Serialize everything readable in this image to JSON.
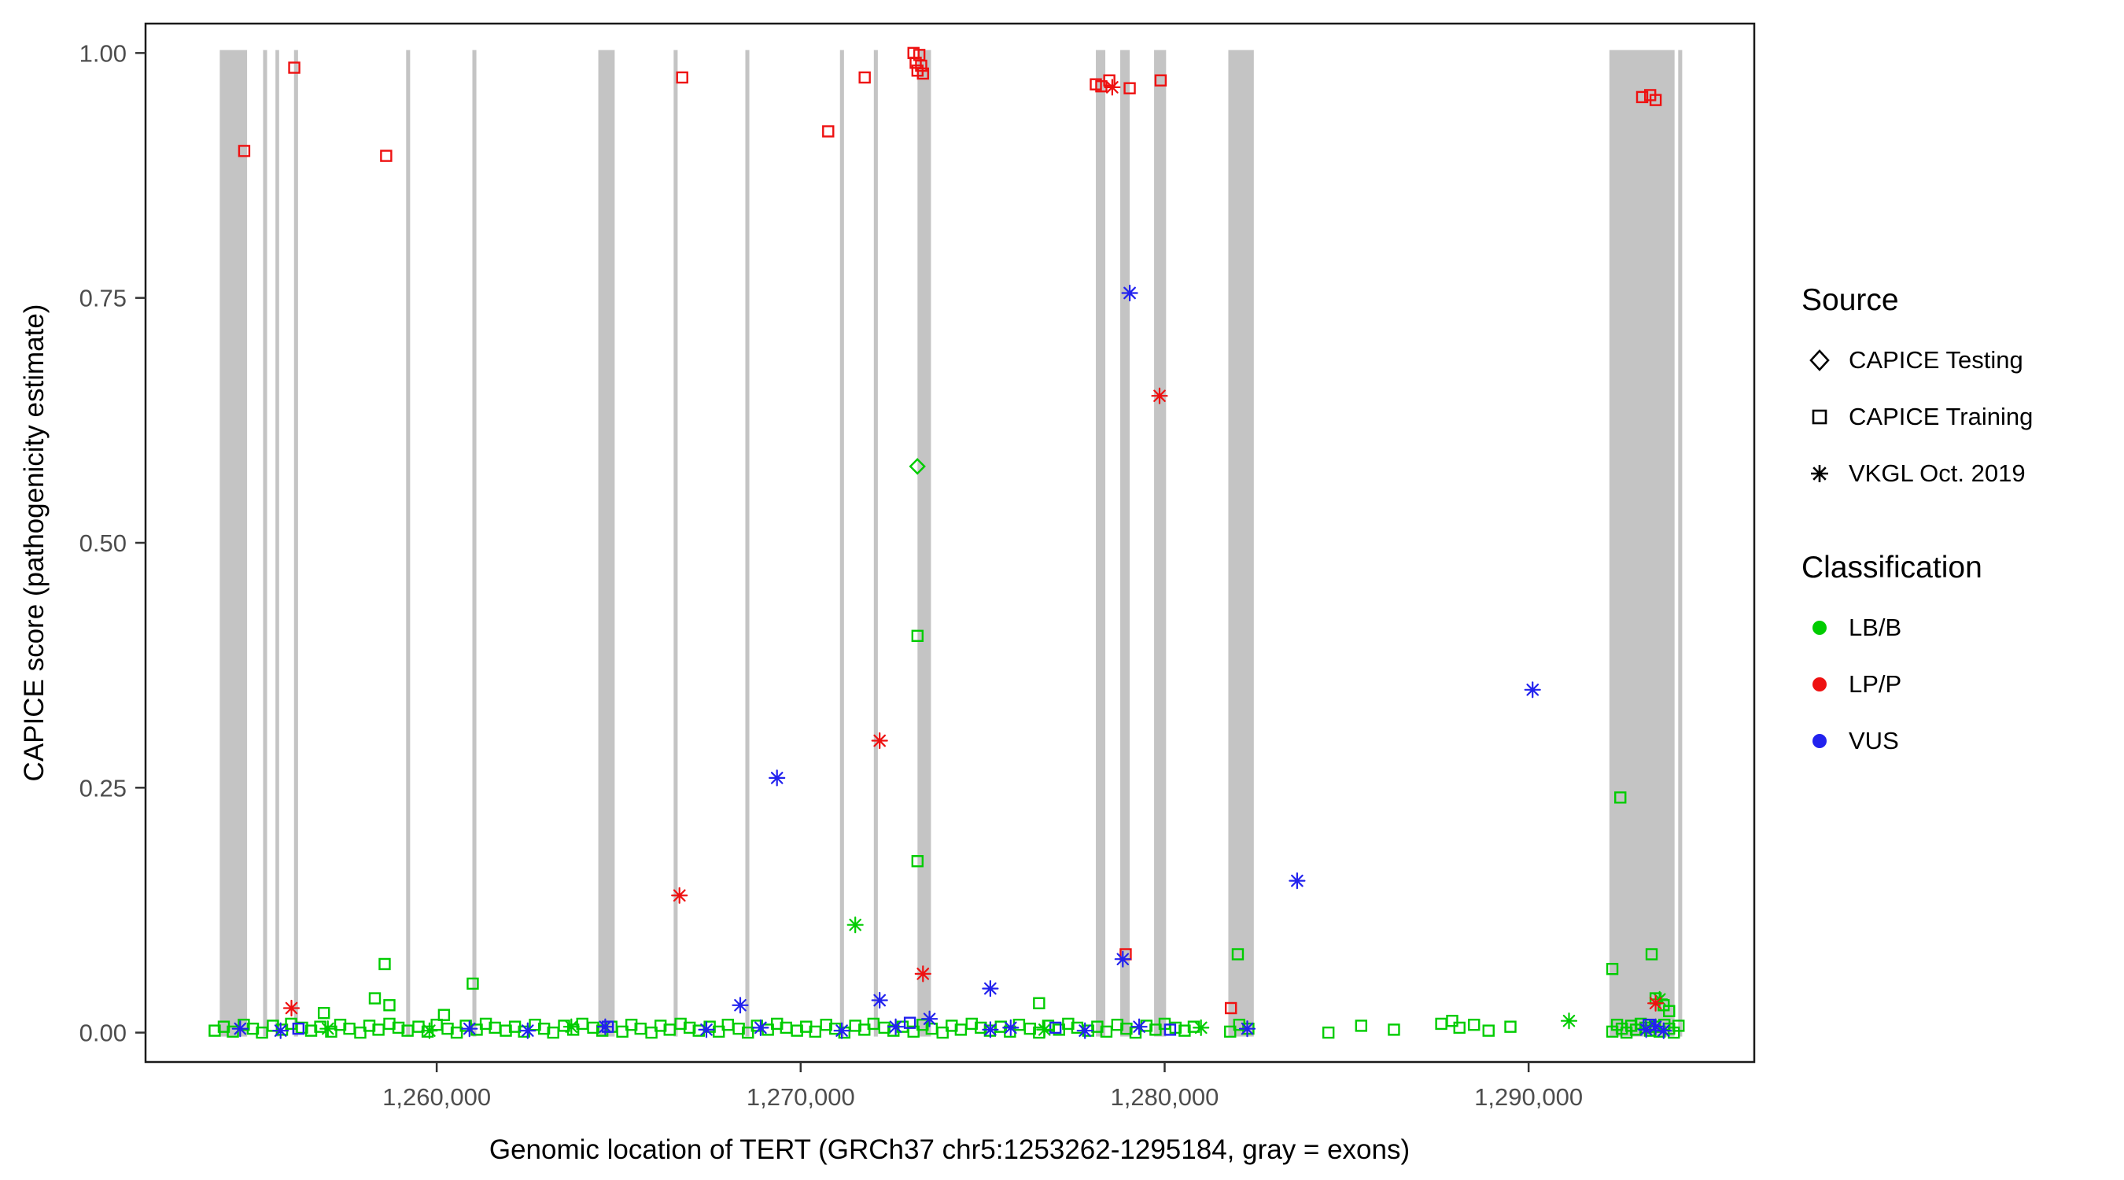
{
  "chart_data": {
    "type": "scatter",
    "title": "",
    "xlabel": "Genomic location of TERT (GRCh37 chr5:1253262-1295184, gray = exons)",
    "ylabel": "CAPICE score (pathogenicity estimate)",
    "xlim": [
      1252000,
      1296200
    ],
    "ylim": [
      -0.03,
      1.03
    ],
    "grid": false,
    "x_ticks": [
      {
        "v": 1260000,
        "label": "1,260,000"
      },
      {
        "v": 1270000,
        "label": "1,270,000"
      },
      {
        "v": 1280000,
        "label": "1,280,000"
      },
      {
        "v": 1290000,
        "label": "1,290,000"
      }
    ],
    "y_ticks": [
      {
        "v": 0.0,
        "label": "0.00"
      },
      {
        "v": 0.25,
        "label": "0.25"
      },
      {
        "v": 0.5,
        "label": "0.50"
      },
      {
        "v": 0.75,
        "label": "0.75"
      },
      {
        "v": 1.0,
        "label": "1.00"
      }
    ],
    "exon_color": "#c4c4c4",
    "exons": [
      [
        1254040,
        1254790
      ],
      [
        1255230,
        1255340
      ],
      [
        1255570,
        1255670
      ],
      [
        1256080,
        1256190
      ],
      [
        1259160,
        1259270
      ],
      [
        1260980,
        1261090
      ],
      [
        1264440,
        1264890
      ],
      [
        1266510,
        1266620
      ],
      [
        1268480,
        1268590
      ],
      [
        1271080,
        1271190
      ],
      [
        1272010,
        1272120
      ],
      [
        1273210,
        1273580
      ],
      [
        1278110,
        1278370
      ],
      [
        1278780,
        1279040
      ],
      [
        1279710,
        1280040
      ],
      [
        1281750,
        1282450
      ],
      [
        1292220,
        1294010
      ],
      [
        1294110,
        1294220
      ]
    ],
    "colors": {
      "LB/B": "#00cc00",
      "LP/P": "#ee1111",
      "VUS": "#2222ee"
    },
    "markers": {
      "CAPICE Testing": "diamond",
      "CAPICE Training": "square",
      "VKGL Oct. 2019": "asterisk"
    },
    "series": [
      {
        "source": "CAPICE Training",
        "classification": "LB/B",
        "points": [
          [
            1258570,
            0.07
          ],
          [
            1260990,
            0.05
          ],
          [
            1273210,
            0.405
          ],
          [
            1273210,
            0.175
          ],
          [
            1276550,
            0.03
          ],
          [
            1282010,
            0.08
          ],
          [
            1292520,
            0.24
          ],
          [
            1292300,
            0.065
          ],
          [
            1293380,
            0.08
          ],
          [
            1293490,
            0.035
          ],
          [
            1293710,
            0.028
          ],
          [
            1293860,
            0.022
          ],
          [
            1258700,
            0.028
          ],
          [
            1258300,
            0.035
          ],
          [
            1256900,
            0.02
          ],
          [
            1260200,
            0.018
          ],
          [
            1287900,
            0.012
          ],
          [
            1288500,
            0.008
          ],
          [
            1253900,
            0.002
          ],
          [
            1254150,
            0.006
          ],
          [
            1254400,
            0.001
          ],
          [
            1254700,
            0.008
          ],
          [
            1254950,
            0.004
          ],
          [
            1255200,
            0.0
          ],
          [
            1255500,
            0.007
          ],
          [
            1255750,
            0.003
          ],
          [
            1256000,
            0.009
          ],
          [
            1256300,
            0.005
          ],
          [
            1256550,
            0.002
          ],
          [
            1256800,
            0.006
          ],
          [
            1257100,
            0.001
          ],
          [
            1257350,
            0.008
          ],
          [
            1257600,
            0.004
          ],
          [
            1257900,
            0.0
          ],
          [
            1258150,
            0.007
          ],
          [
            1258400,
            0.003
          ],
          [
            1258700,
            0.009
          ],
          [
            1258950,
            0.005
          ],
          [
            1259200,
            0.002
          ],
          [
            1259500,
            0.006
          ],
          [
            1259750,
            0.001
          ],
          [
            1260000,
            0.008
          ],
          [
            1260300,
            0.004
          ],
          [
            1260550,
            0.0
          ],
          [
            1260800,
            0.007
          ],
          [
            1261100,
            0.003
          ],
          [
            1261350,
            0.009
          ],
          [
            1261600,
            0.005
          ],
          [
            1261900,
            0.002
          ],
          [
            1262150,
            0.006
          ],
          [
            1262400,
            0.001
          ],
          [
            1262700,
            0.008
          ],
          [
            1262950,
            0.004
          ],
          [
            1263200,
            0.0
          ],
          [
            1263500,
            0.007
          ],
          [
            1263750,
            0.003
          ],
          [
            1264000,
            0.009
          ],
          [
            1264300,
            0.005
          ],
          [
            1264550,
            0.002
          ],
          [
            1264800,
            0.006
          ],
          [
            1265100,
            0.001
          ],
          [
            1265350,
            0.008
          ],
          [
            1265600,
            0.004
          ],
          [
            1265900,
            0.0
          ],
          [
            1266150,
            0.007
          ],
          [
            1266400,
            0.003
          ],
          [
            1266700,
            0.009
          ],
          [
            1266950,
            0.005
          ],
          [
            1267200,
            0.002
          ],
          [
            1267500,
            0.006
          ],
          [
            1267750,
            0.001
          ],
          [
            1268000,
            0.008
          ],
          [
            1268300,
            0.004
          ],
          [
            1268550,
            0.0
          ],
          [
            1268800,
            0.007
          ],
          [
            1269100,
            0.003
          ],
          [
            1269350,
            0.009
          ],
          [
            1269600,
            0.005
          ],
          [
            1269900,
            0.002
          ],
          [
            1270150,
            0.006
          ],
          [
            1270400,
            0.001
          ],
          [
            1270700,
            0.008
          ],
          [
            1270950,
            0.004
          ],
          [
            1271200,
            0.0
          ],
          [
            1271500,
            0.007
          ],
          [
            1271750,
            0.003
          ],
          [
            1272000,
            0.009
          ],
          [
            1272300,
            0.005
          ],
          [
            1272550,
            0.002
          ],
          [
            1272800,
            0.006
          ],
          [
            1273100,
            0.001
          ],
          [
            1273350,
            0.008
          ],
          [
            1273600,
            0.004
          ],
          [
            1273900,
            0.0
          ],
          [
            1274150,
            0.007
          ],
          [
            1274400,
            0.003
          ],
          [
            1274700,
            0.009
          ],
          [
            1274950,
            0.005
          ],
          [
            1275200,
            0.002
          ],
          [
            1275500,
            0.006
          ],
          [
            1275750,
            0.001
          ],
          [
            1276000,
            0.008
          ],
          [
            1276300,
            0.004
          ],
          [
            1276550,
            0.0
          ],
          [
            1276800,
            0.007
          ],
          [
            1277100,
            0.003
          ],
          [
            1277350,
            0.009
          ],
          [
            1277600,
            0.005
          ],
          [
            1277900,
            0.002
          ],
          [
            1278150,
            0.006
          ],
          [
            1278400,
            0.001
          ],
          [
            1278700,
            0.008
          ],
          [
            1278950,
            0.004
          ],
          [
            1279200,
            0.0
          ],
          [
            1279500,
            0.007
          ],
          [
            1279750,
            0.003
          ],
          [
            1280000,
            0.009
          ],
          [
            1280300,
            0.005
          ],
          [
            1280550,
            0.002
          ],
          [
            1280800,
            0.006
          ],
          [
            1281800,
            0.001
          ],
          [
            1282050,
            0.008
          ],
          [
            1282300,
            0.004
          ],
          [
            1284500,
            0.0
          ],
          [
            1285400,
            0.007
          ],
          [
            1286300,
            0.003
          ],
          [
            1287600,
            0.009
          ],
          [
            1288100,
            0.005
          ],
          [
            1288900,
            0.002
          ],
          [
            1289500,
            0.006
          ],
          [
            1292300,
            0.001
          ],
          [
            1292430,
            0.008
          ],
          [
            1292560,
            0.004
          ],
          [
            1292690,
            0.0
          ],
          [
            1292820,
            0.007
          ],
          [
            1292950,
            0.003
          ],
          [
            1293080,
            0.009
          ],
          [
            1293210,
            0.005
          ],
          [
            1293340,
            0.002
          ],
          [
            1293470,
            0.006
          ],
          [
            1293600,
            0.001
          ],
          [
            1293730,
            0.008
          ],
          [
            1293860,
            0.004
          ],
          [
            1293990,
            0.0
          ],
          [
            1294120,
            0.007
          ]
        ]
      },
      {
        "source": "CAPICE Training",
        "classification": "VUS",
        "points": [
          [
            1256200,
            0.004
          ],
          [
            1264700,
            0.006
          ],
          [
            1273000,
            0.01
          ],
          [
            1277000,
            0.005
          ],
          [
            1280150,
            0.003
          ],
          [
            1293300,
            0.008
          ]
        ]
      },
      {
        "source": "CAPICE Training",
        "classification": "LP/P",
        "points": [
          [
            1254711,
            0.9
          ],
          [
            1256086,
            0.985
          ],
          [
            1258611,
            0.895
          ],
          [
            1266745,
            0.975
          ],
          [
            1270756,
            0.92
          ],
          [
            1271759,
            0.975
          ],
          [
            1273100,
            1.0
          ],
          [
            1273260,
            0.998
          ],
          [
            1273160,
            0.99
          ],
          [
            1273310,
            0.987
          ],
          [
            1273210,
            0.982
          ],
          [
            1273360,
            0.979
          ],
          [
            1278260,
            0.966
          ],
          [
            1278480,
            0.972
          ],
          [
            1278110,
            0.968
          ],
          [
            1279040,
            0.964
          ],
          [
            1279890,
            0.972
          ],
          [
            1278930,
            0.08
          ],
          [
            1281820,
            0.025
          ],
          [
            1293120,
            0.955
          ],
          [
            1293340,
            0.957
          ],
          [
            1293490,
            0.952
          ]
        ]
      },
      {
        "source": "VKGL Oct. 2019",
        "classification": "LB/B",
        "points": [
          [
            1271500,
            0.11
          ],
          [
            1291110,
            0.012
          ],
          [
            1257010,
            0.004
          ],
          [
            1263700,
            0.006
          ],
          [
            1276700,
            0.003
          ],
          [
            1259800,
            0.002
          ],
          [
            1281000,
            0.005
          ],
          [
            1293600,
            0.034
          ]
        ]
      },
      {
        "source": "VKGL Oct. 2019",
        "classification": "VUS",
        "points": [
          [
            1279040,
            0.755
          ],
          [
            1269350,
            0.26
          ],
          [
            1290110,
            0.35
          ],
          [
            1283640,
            0.155
          ],
          [
            1278850,
            0.075
          ],
          [
            1275210,
            0.045
          ],
          [
            1272170,
            0.033
          ],
          [
            1268340,
            0.028
          ],
          [
            1254600,
            0.004
          ],
          [
            1255710,
            0.002
          ],
          [
            1260900,
            0.004
          ],
          [
            1262500,
            0.002
          ],
          [
            1264630,
            0.006
          ],
          [
            1267410,
            0.003
          ],
          [
            1268900,
            0.005
          ],
          [
            1271130,
            0.002
          ],
          [
            1272610,
            0.006
          ],
          [
            1273540,
            0.014
          ],
          [
            1275210,
            0.003
          ],
          [
            1275770,
            0.005
          ],
          [
            1277810,
            0.002
          ],
          [
            1279300,
            0.006
          ],
          [
            1282270,
            0.004
          ],
          [
            1293230,
            0.003
          ],
          [
            1293490,
            0.006
          ],
          [
            1293710,
            0.002
          ]
        ]
      },
      {
        "source": "VKGL Oct. 2019",
        "classification": "LP/P",
        "points": [
          [
            1256010,
            0.025
          ],
          [
            1266670,
            0.14
          ],
          [
            1272170,
            0.298
          ],
          [
            1273360,
            0.06
          ],
          [
            1278560,
            0.965
          ],
          [
            1279860,
            0.65
          ],
          [
            1293490,
            0.03
          ]
        ]
      },
      {
        "source": "CAPICE Testing",
        "classification": "LB/B",
        "points": [
          [
            1273207,
            0.578
          ]
        ]
      }
    ],
    "legend": {
      "source": {
        "title": "Source",
        "items": [
          {
            "label": "CAPICE Testing",
            "marker": "diamond"
          },
          {
            "label": "CAPICE Training",
            "marker": "square"
          },
          {
            "label": "VKGL Oct. 2019",
            "marker": "asterisk"
          }
        ]
      },
      "classification": {
        "title": "Classification",
        "items": [
          {
            "label": "LB/B",
            "color": "#00cc00"
          },
          {
            "label": "LP/P",
            "color": "#ee1111"
          },
          {
            "label": "VUS",
            "color": "#2222ee"
          }
        ]
      }
    }
  }
}
